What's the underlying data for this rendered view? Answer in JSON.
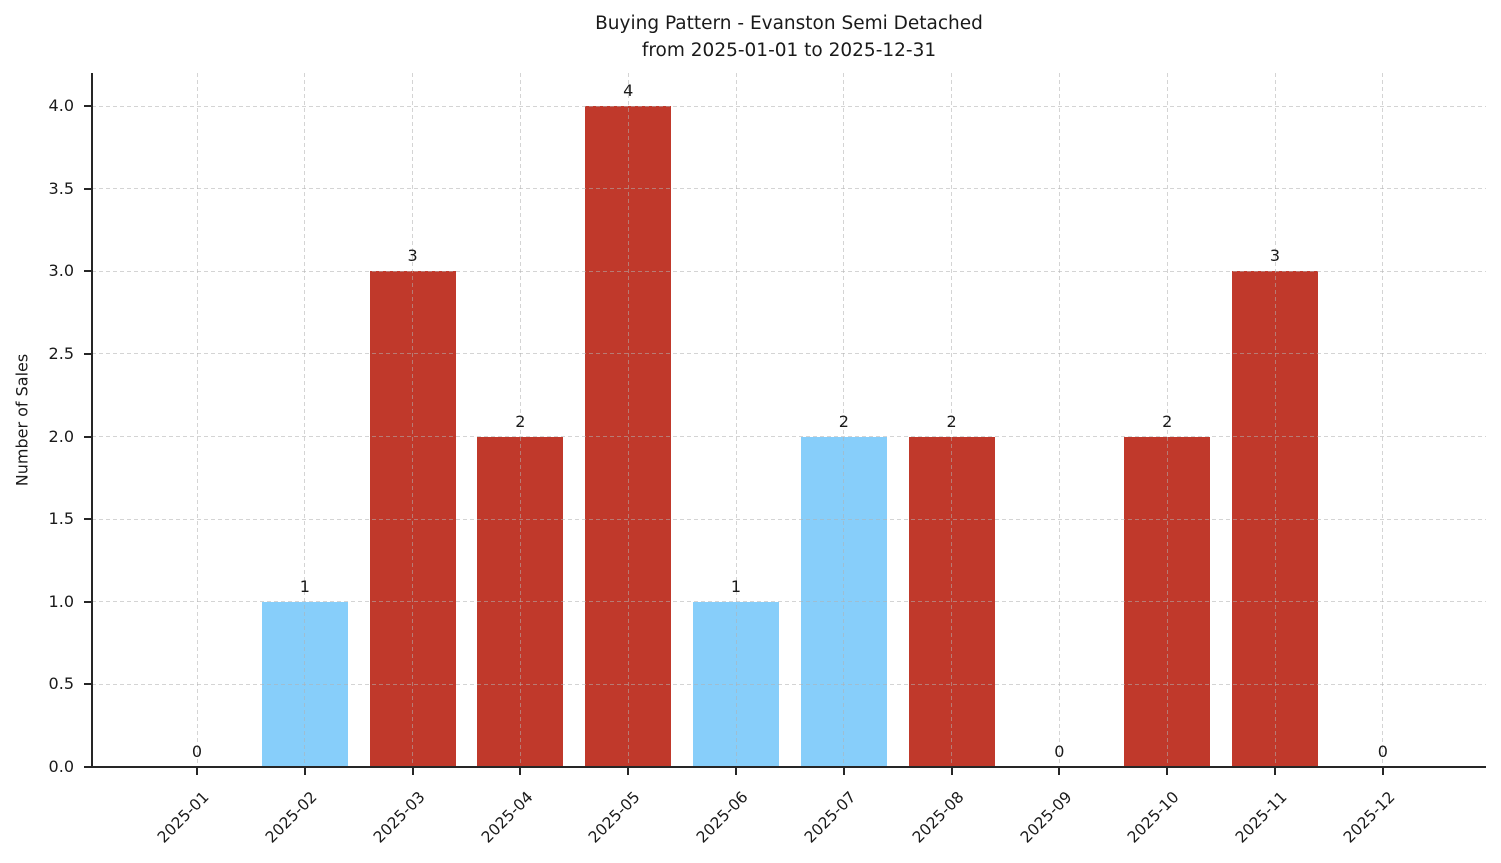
{
  "chart_data": {
    "type": "bar",
    "title": "Buying Pattern - Evanston Semi Detached",
    "subtitle": "from 2025-01-01 to 2025-12-31",
    "ylabel": "Number of Sales",
    "xlabel": "",
    "categories": [
      "2025-01",
      "2025-02",
      "2025-03",
      "2025-04",
      "2025-05",
      "2025-06",
      "2025-07",
      "2025-08",
      "2025-09",
      "2025-10",
      "2025-11",
      "2025-12"
    ],
    "values": [
      0,
      1,
      3,
      2,
      4,
      1,
      2,
      2,
      0,
      2,
      3,
      0
    ],
    "value_labels": [
      "0",
      "1",
      "3",
      "2",
      "4",
      "1",
      "2",
      "2",
      "0",
      "2",
      "3",
      "0"
    ],
    "bar_colors": [
      "#c0392b",
      "#87cefa",
      "#c0392b",
      "#c0392b",
      "#c0392b",
      "#87cefa",
      "#87cefa",
      "#c0392b",
      "#c0392b",
      "#c0392b",
      "#c0392b",
      "#c0392b"
    ],
    "yticks": [
      0,
      0.5,
      1,
      1.5,
      2,
      2.5,
      3,
      3.5,
      4
    ],
    "ytick_labels": [
      "0.0",
      "0.5",
      "1.0",
      "1.5",
      "2.0",
      "2.5",
      "3.0",
      "3.5",
      "4.0"
    ],
    "ylim": [
      0,
      4.2
    ],
    "grid": "dashed",
    "legend": "none",
    "colors": {
      "bar_red": "#c0392b",
      "bar_blue": "#87cefa",
      "grid": "#b1b1b1",
      "axis": "#262626",
      "text": "#1a1a1a",
      "background": "#ffffff"
    }
  }
}
